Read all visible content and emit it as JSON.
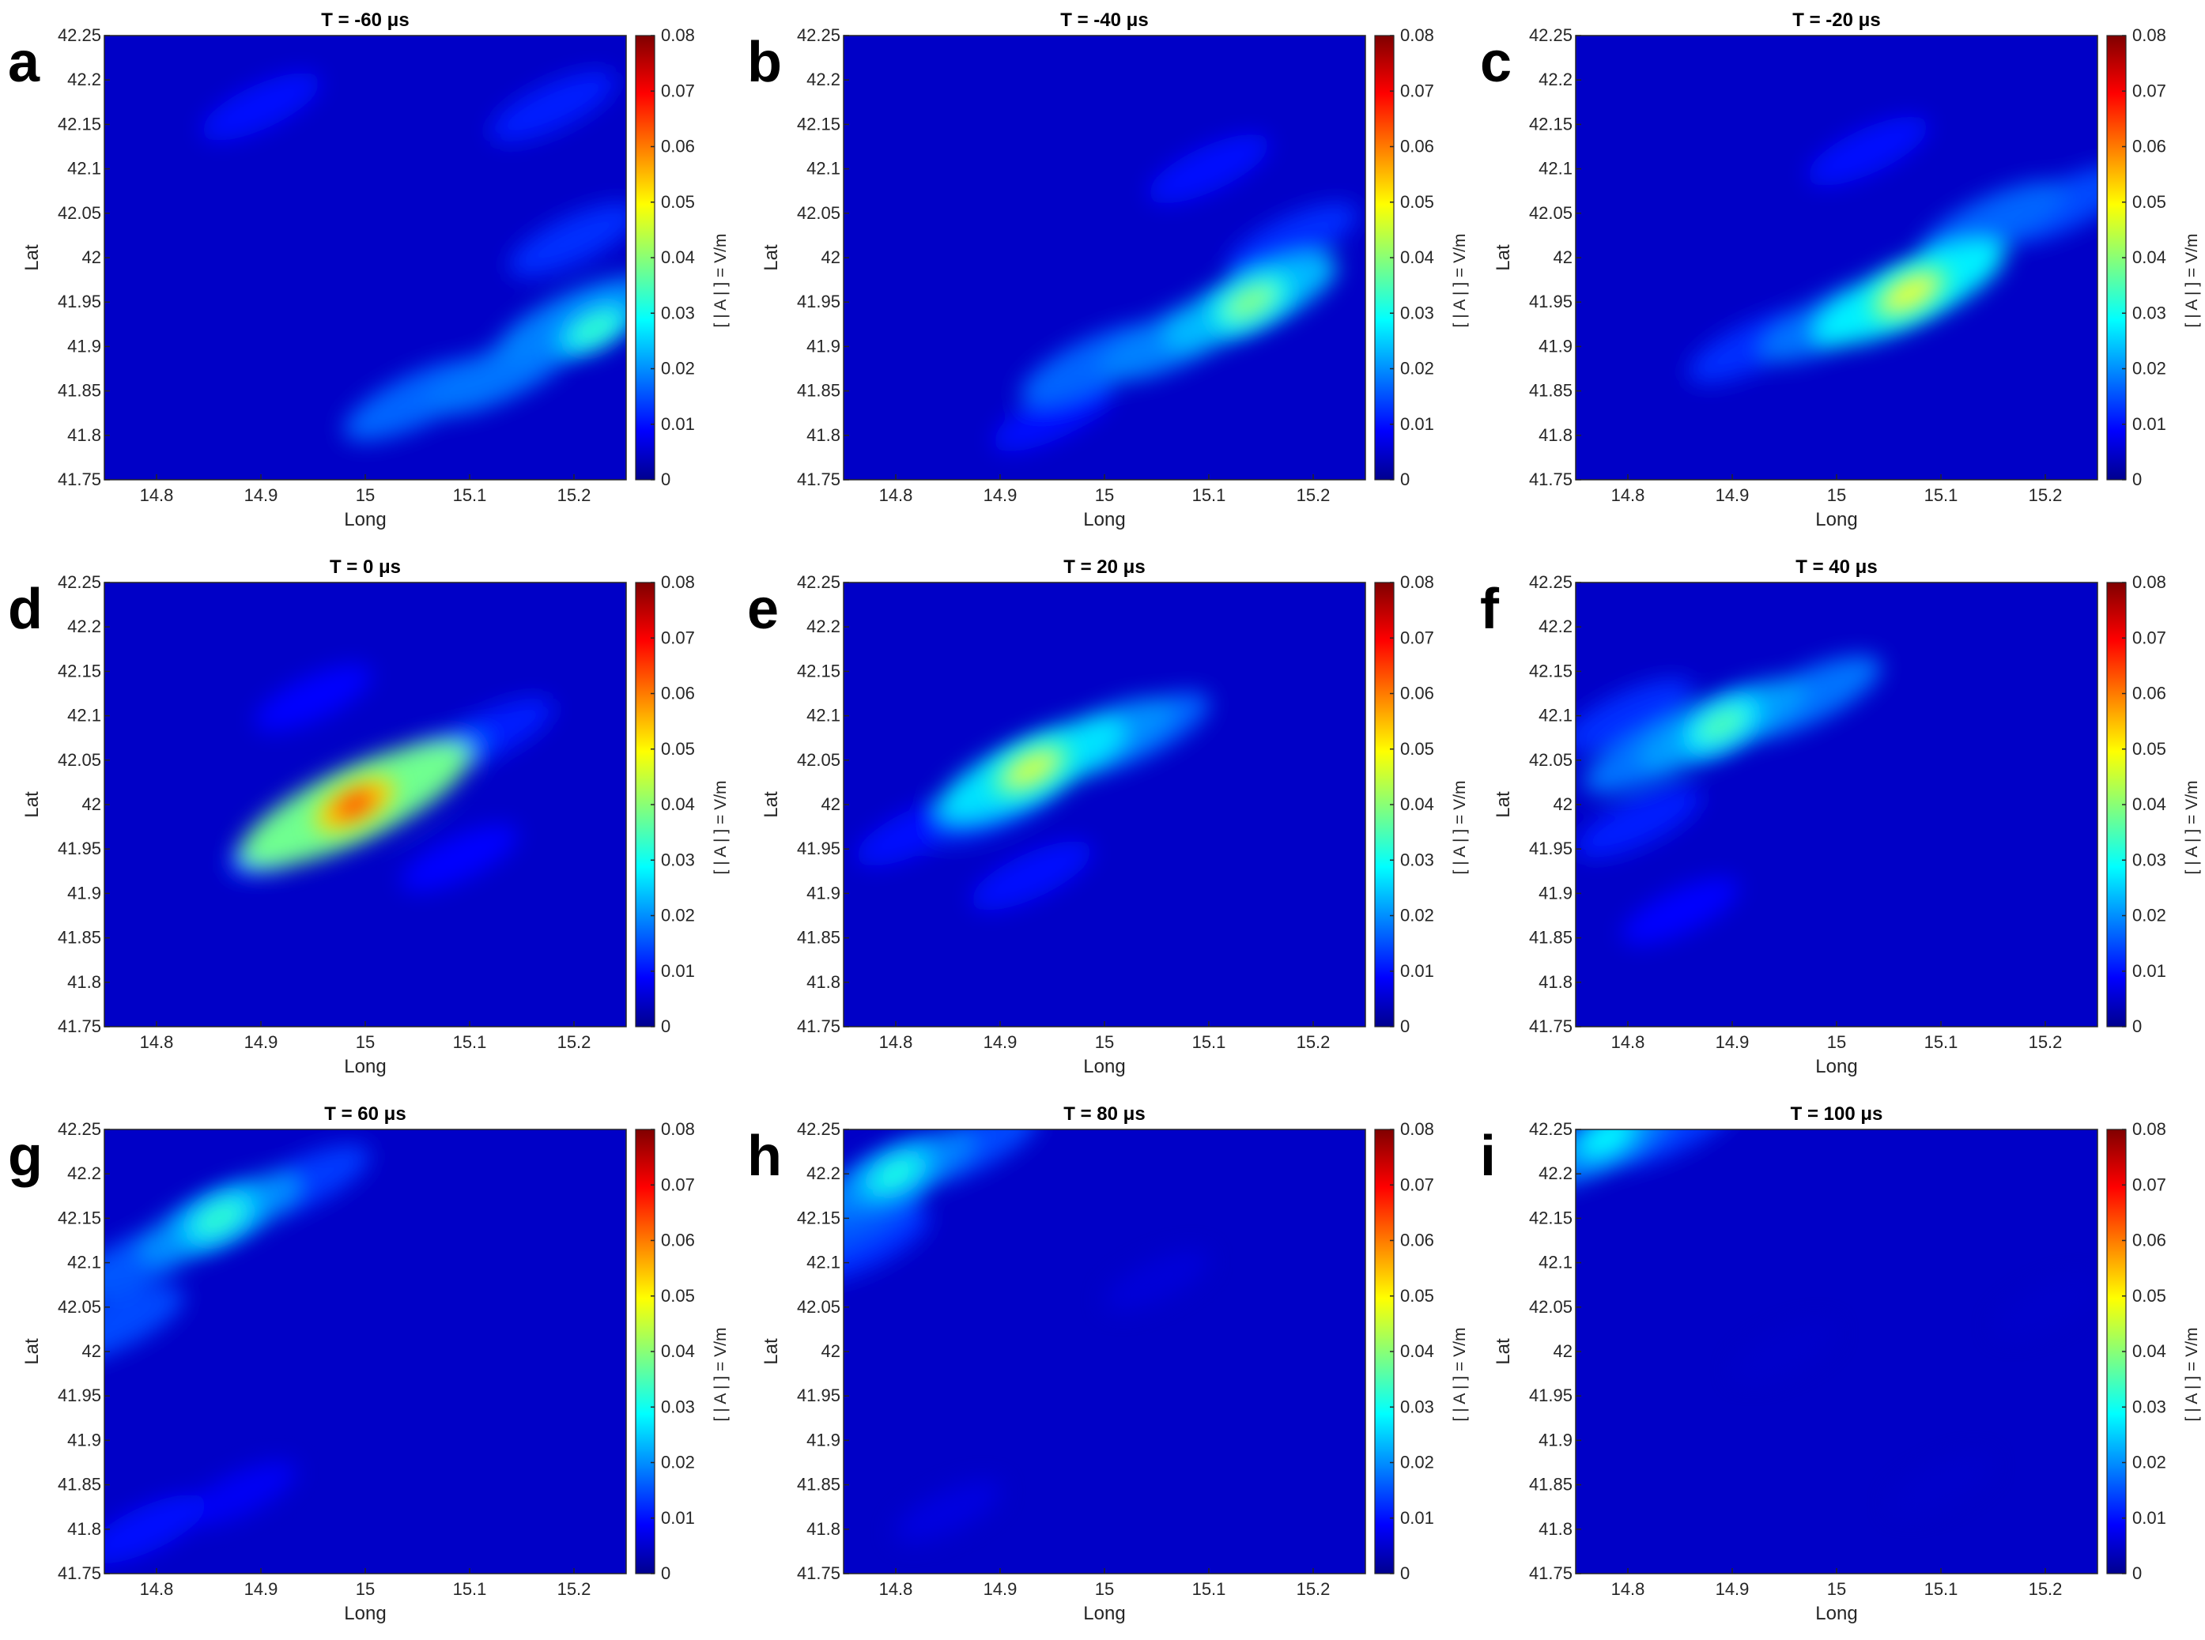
{
  "chart_data": {
    "type": "heatmap",
    "colormap": "jet",
    "xlabel": "Long",
    "ylabel": "Lat",
    "colorbar_label": "[ | A | ] = V/m",
    "xlim": [
      14.75,
      15.25
    ],
    "ylim": [
      41.75,
      42.25
    ],
    "xticks": [
      "14.8",
      "14.9",
      "15",
      "15.1",
      "15.2"
    ],
    "yticks": [
      "41.75",
      "41.8",
      "41.85",
      "41.9",
      "41.95",
      "42",
      "42.05",
      "42.1",
      "42.15",
      "42.2",
      "42.25"
    ],
    "clim": [
      0,
      0.08
    ],
    "cticks": [
      "0",
      "0.01",
      "0.02",
      "0.03",
      "0.04",
      "0.05",
      "0.06",
      "0.07",
      "0.08"
    ],
    "panels": [
      {
        "letter": "a",
        "title": "T = -60 μs",
        "peak": {
          "long": 15.22,
          "lat": 41.92,
          "value": 0.034
        },
        "features": [
          [
            15.05,
            41.84,
            0.028
          ],
          [
            15.13,
            41.87,
            0.03
          ],
          [
            15.2,
            41.93,
            0.032
          ],
          [
            15.2,
            42.02,
            0.02
          ],
          [
            15.18,
            42.17,
            0.018
          ],
          [
            14.9,
            42.17,
            0.015
          ]
        ]
      },
      {
        "letter": "b",
        "title": "T = -40 μs",
        "peak": {
          "long": 15.14,
          "lat": 41.95,
          "value": 0.04
        },
        "features": [
          [
            14.99,
            41.88,
            0.028
          ],
          [
            15.07,
            41.91,
            0.032
          ],
          [
            15.14,
            41.95,
            0.04
          ],
          [
            15.18,
            42.02,
            0.02
          ],
          [
            14.95,
            41.82,
            0.015
          ],
          [
            15.1,
            42.1,
            0.016
          ]
        ]
      },
      {
        "letter": "c",
        "title": "T = -20 μs",
        "peak": {
          "long": 15.07,
          "lat": 41.96,
          "value": 0.048
        },
        "features": [
          [
            15.07,
            41.96,
            0.048
          ],
          [
            15.0,
            41.93,
            0.03
          ],
          [
            15.15,
            42.04,
            0.028
          ],
          [
            15.22,
            42.06,
            0.024
          ],
          [
            14.92,
            41.9,
            0.02
          ],
          [
            15.03,
            42.12,
            0.016
          ]
        ]
      },
      {
        "letter": "d",
        "title": "T = 0 μs",
        "peak": {
          "long": 14.99,
          "lat": 42.0,
          "value": 0.066
        },
        "features": [
          [
            14.99,
            42.0,
            0.066
          ],
          [
            15.05,
            42.04,
            0.026
          ],
          [
            15.12,
            42.08,
            0.018
          ],
          [
            14.93,
            41.96,
            0.02
          ],
          [
            14.95,
            42.12,
            0.014
          ],
          [
            15.09,
            41.94,
            0.014
          ]
        ]
      },
      {
        "letter": "e",
        "title": "T = 20 μs",
        "peak": {
          "long": 14.93,
          "lat": 42.04,
          "value": 0.046
        },
        "features": [
          [
            14.93,
            42.04,
            0.046
          ],
          [
            14.99,
            42.07,
            0.034
          ],
          [
            15.03,
            42.08,
            0.028
          ],
          [
            14.9,
            42.0,
            0.022
          ],
          [
            14.93,
            41.92,
            0.016
          ],
          [
            14.82,
            41.97,
            0.016
          ]
        ]
      },
      {
        "letter": "f",
        "title": "T = 40 μs",
        "peak": {
          "long": 14.89,
          "lat": 42.09,
          "value": 0.036
        },
        "features": [
          [
            14.89,
            42.09,
            0.036
          ],
          [
            14.97,
            42.12,
            0.03
          ],
          [
            14.83,
            42.06,
            0.03
          ],
          [
            14.81,
            41.98,
            0.018
          ],
          [
            14.85,
            41.88,
            0.014
          ],
          [
            14.8,
            42.1,
            0.02
          ]
        ]
      },
      {
        "letter": "g",
        "title": "T = 60 μs",
        "peak": {
          "long": 14.86,
          "lat": 42.15,
          "value": 0.034
        },
        "features": [
          [
            14.86,
            42.15,
            0.034
          ],
          [
            14.78,
            42.1,
            0.026
          ],
          [
            14.76,
            42.03,
            0.024
          ],
          [
            14.94,
            42.19,
            0.022
          ],
          [
            14.79,
            41.8,
            0.016
          ],
          [
            14.88,
            41.84,
            0.012
          ]
        ]
      },
      {
        "letter": "h",
        "title": "T = 80 μs",
        "peak": {
          "long": 14.8,
          "lat": 42.2,
          "value": 0.032
        },
        "features": [
          [
            14.8,
            42.2,
            0.032
          ],
          [
            14.76,
            42.15,
            0.026
          ],
          [
            14.87,
            42.23,
            0.024
          ],
          [
            14.77,
            42.12,
            0.02
          ],
          [
            15.05,
            42.08,
            0.008
          ],
          [
            14.85,
            41.82,
            0.009
          ]
        ]
      },
      {
        "letter": "i",
        "title": "T = 100 μs",
        "peak": {
          "long": 14.78,
          "lat": 42.24,
          "value": 0.03
        },
        "features": [
          [
            14.77,
            42.23,
            0.03
          ],
          [
            14.84,
            42.25,
            0.022
          ],
          [
            14.95,
            42.0,
            0.006
          ],
          [
            15.1,
            41.85,
            0.006
          ],
          [
            15.2,
            42.05,
            0.006
          ]
        ]
      }
    ]
  }
}
